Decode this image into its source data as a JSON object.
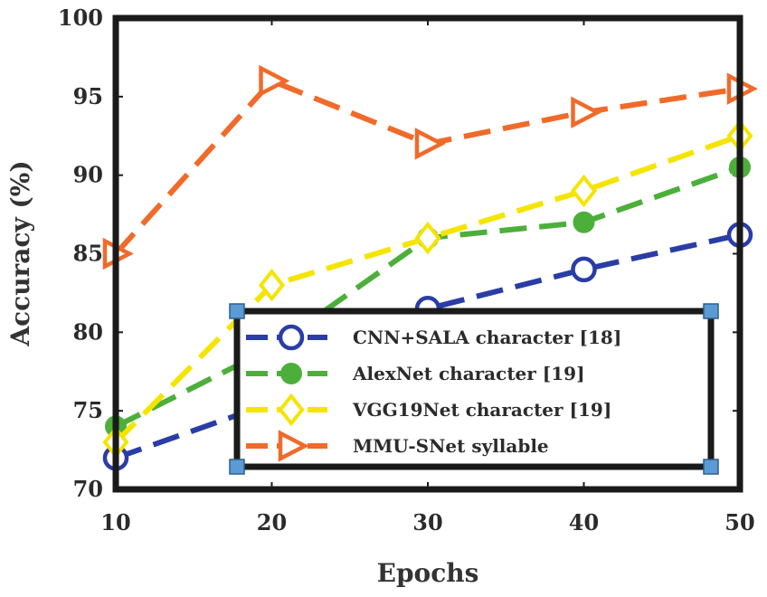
{
  "chart_data": {
    "type": "line",
    "xlabel": "Epochs",
    "ylabel": "Accuracy (%)",
    "x": [
      10,
      20,
      30,
      40,
      50
    ],
    "xlim": [
      10,
      50
    ],
    "ylim": [
      70,
      100
    ],
    "xticks": [
      "10",
      "20",
      "30",
      "40",
      "50"
    ],
    "yticks": [
      "70",
      "75",
      "80",
      "85",
      "90",
      "95",
      "100"
    ],
    "grid": false,
    "legend_position": "bottom-right",
    "series": [
      {
        "name": "CNN+SALA character [18]",
        "values": [
          72,
          75.5,
          81.5,
          84,
          86.2
        ],
        "color": "#2a3da6",
        "marker": "circle-open"
      },
      {
        "name": "AlexNet character [19]",
        "values": [
          74,
          79,
          86,
          87,
          90.5
        ],
        "color": "#4caf3a",
        "marker": "circle-filled"
      },
      {
        "name": "VGG19Net character [19]",
        "values": [
          73,
          83,
          86,
          89,
          92.5
        ],
        "color": "#f5e400",
        "marker": "diamond-open"
      },
      {
        "name": "MMU-SNet syllable",
        "values": [
          85,
          96,
          92,
          94,
          95.5
        ],
        "color": "#f06a2a",
        "marker": "triangle-right-open"
      }
    ]
  }
}
